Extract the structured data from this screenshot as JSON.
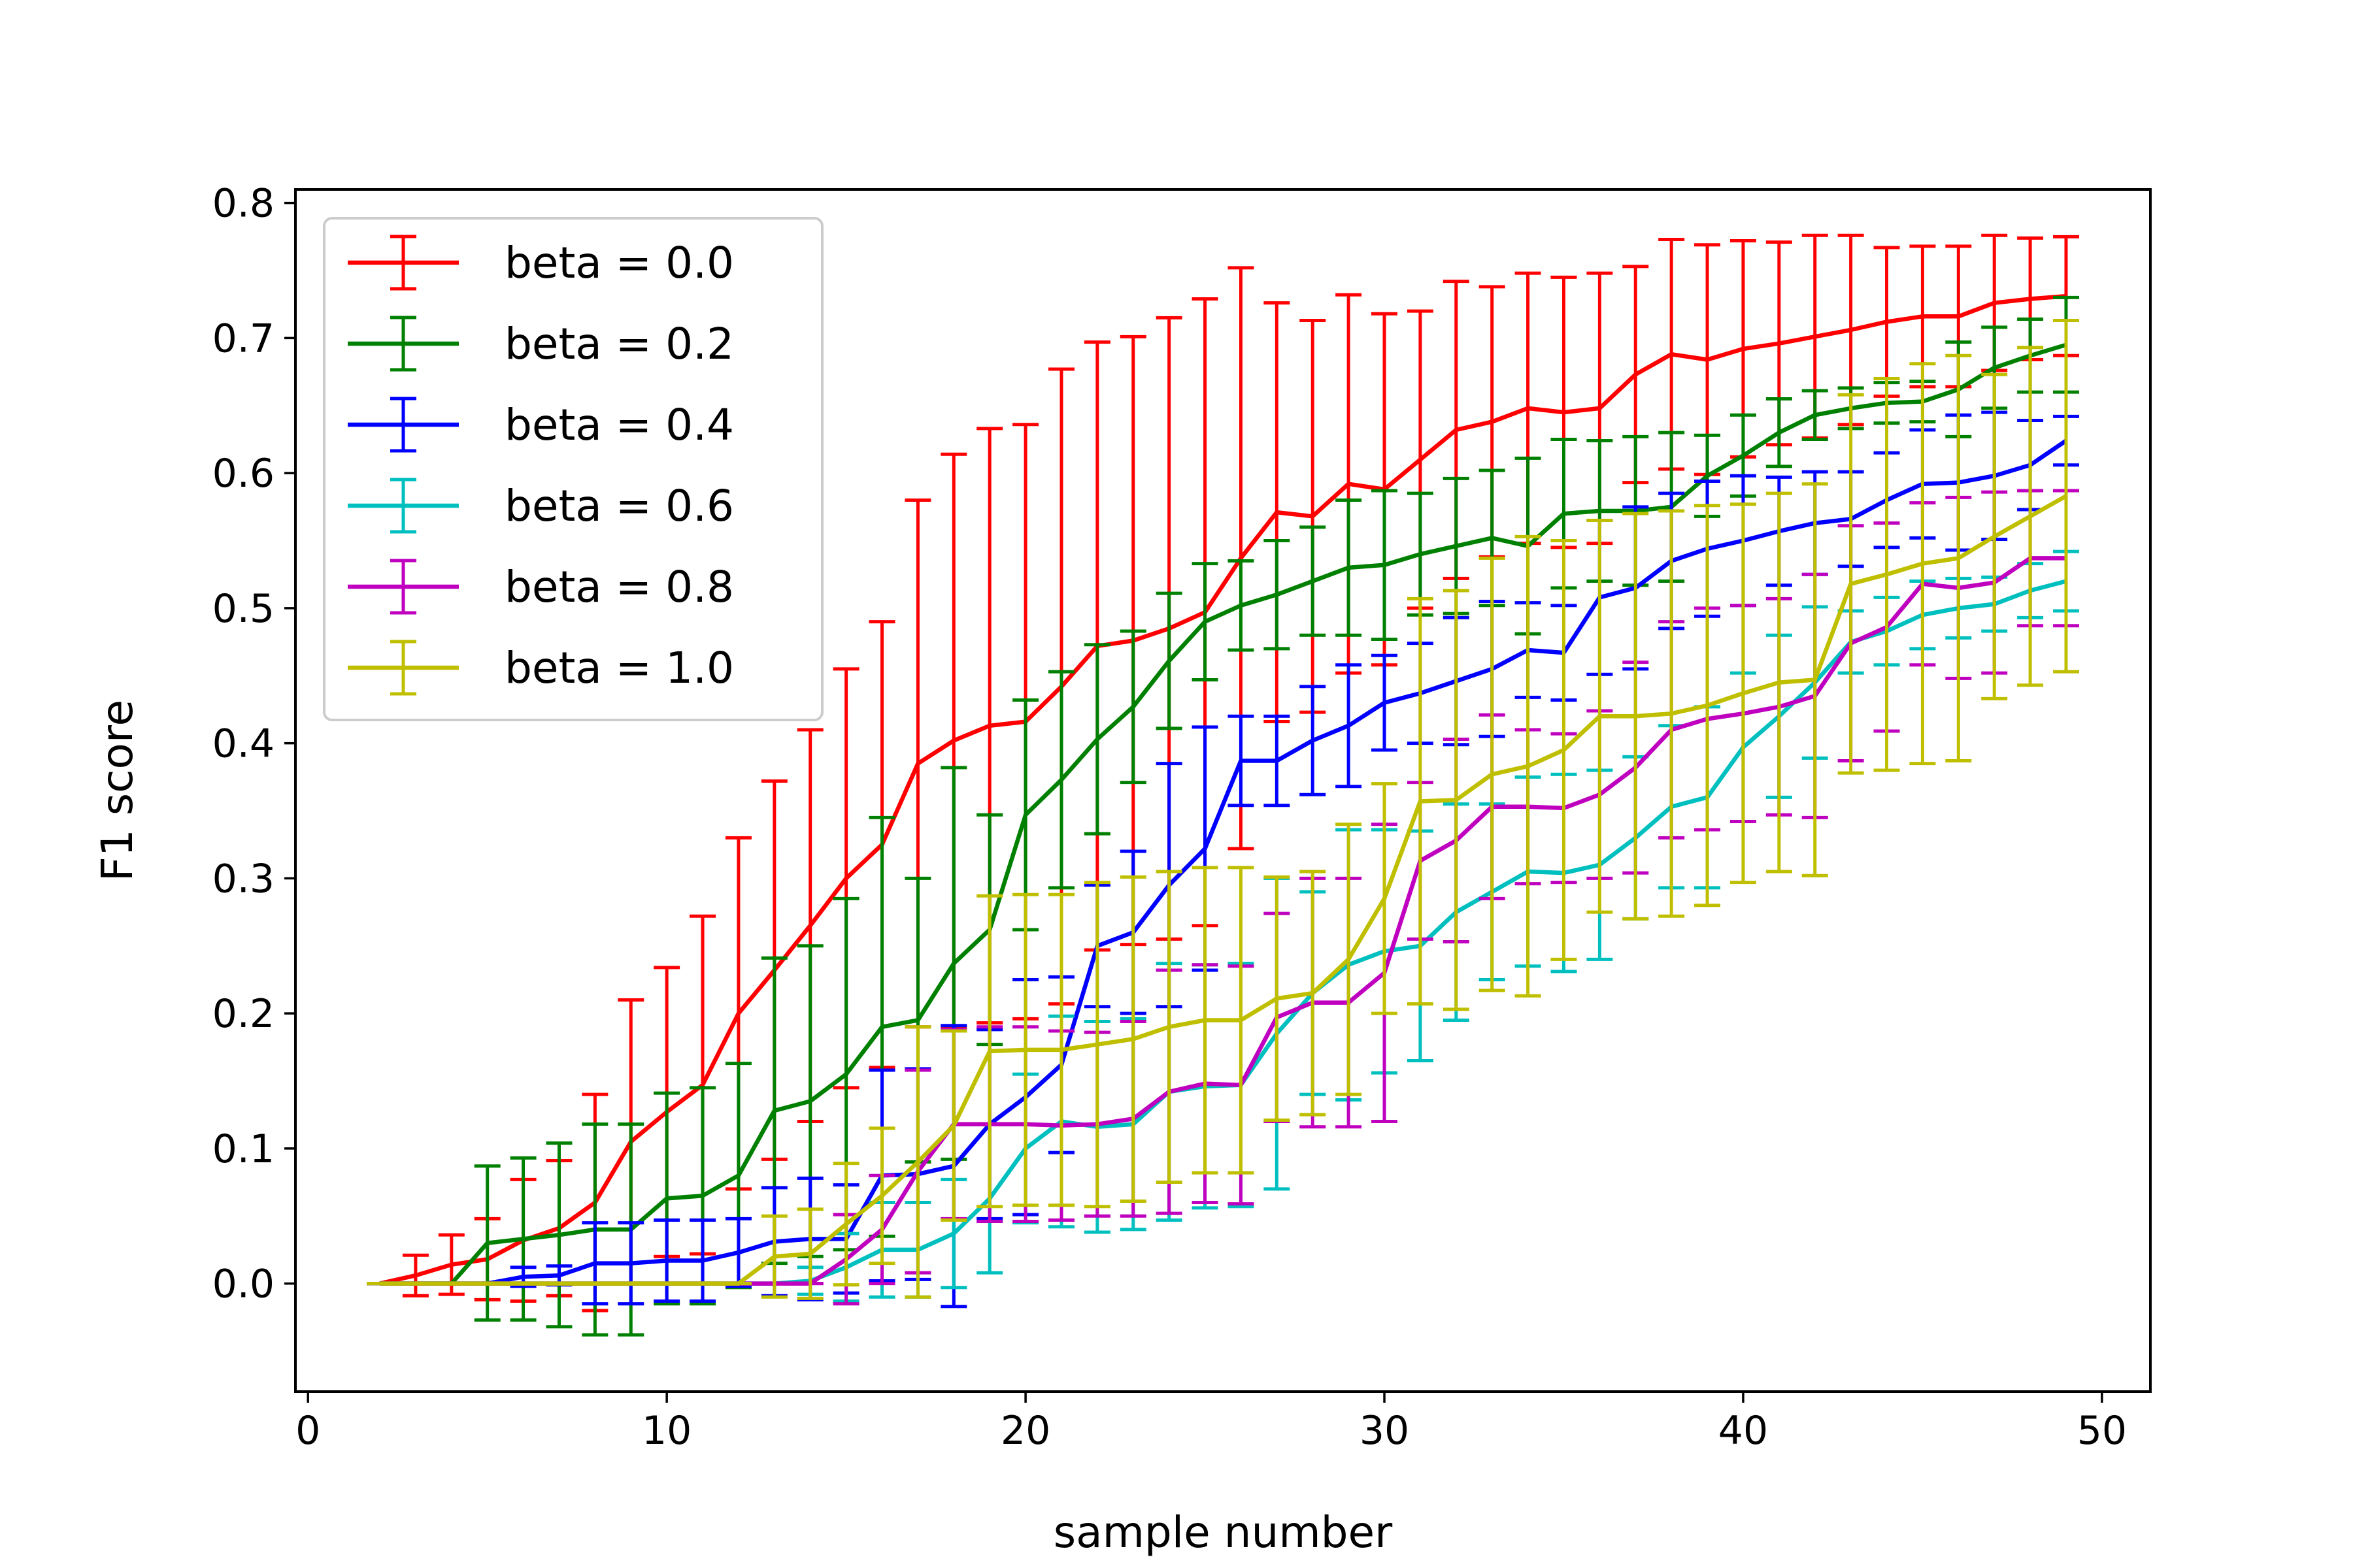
{
  "chart_data": {
    "type": "line",
    "title": "",
    "xlabel": "sample number",
    "ylabel": "F1 score",
    "xlim": [
      -0.35,
      51.35
    ],
    "ylim": [
      -0.08,
      0.81
    ],
    "xticks": [
      0,
      10,
      20,
      30,
      40,
      50
    ],
    "xtick_labels": [
      "0",
      "10",
      "20",
      "30",
      "40",
      "50"
    ],
    "yticks": [
      0.0,
      0.1,
      0.2,
      0.3,
      0.4,
      0.5,
      0.6,
      0.7,
      0.8
    ],
    "ytick_labels": [
      "0.0",
      "0.1",
      "0.2",
      "0.3",
      "0.4",
      "0.5",
      "0.6",
      "0.7",
      "0.8"
    ],
    "grid": false,
    "legend_position": "upper-left",
    "x": [
      2,
      3,
      4,
      5,
      6,
      7,
      8,
      9,
      10,
      11,
      12,
      13,
      14,
      15,
      16,
      17,
      18,
      19,
      20,
      21,
      22,
      23,
      24,
      25,
      26,
      27,
      28,
      29,
      30,
      31,
      32,
      33,
      34,
      35,
      36,
      37,
      38,
      39,
      40,
      41,
      42,
      43,
      44,
      45,
      46,
      47,
      48,
      49
    ],
    "series": [
      {
        "name": "beta = 0.0",
        "color": "#ff0000",
        "values": [
          0,
          0.006,
          0.014,
          0.018,
          0.032,
          0.041,
          0.06,
          0.105,
          0.127,
          0.147,
          0.2,
          0.232,
          0.265,
          0.3,
          0.325,
          0.385,
          0.402,
          0.413,
          0.416,
          0.442,
          0.472,
          0.476,
          0.485,
          0.497,
          0.537,
          0.571,
          0.568,
          0.592,
          0.588,
          0.61,
          0.632,
          0.638,
          0.648,
          0.645,
          0.648,
          0.673,
          0.688,
          0.684,
          0.692,
          0.696,
          0.701,
          0.706,
          0.712,
          0.716,
          0.716,
          0.726,
          0.729,
          0.731
        ],
        "errors": [
          0,
          0.015,
          0.022,
          0.03,
          0.045,
          0.05,
          0.08,
          0.105,
          0.107,
          0.125,
          0.13,
          0.14,
          0.145,
          0.155,
          0.165,
          0.195,
          0.212,
          0.22,
          0.22,
          0.235,
          0.225,
          0.225,
          0.23,
          0.232,
          0.215,
          0.155,
          0.145,
          0.14,
          0.13,
          0.11,
          0.11,
          0.1,
          0.1,
          0.1,
          0.1,
          0.08,
          0.085,
          0.085,
          0.08,
          0.075,
          0.075,
          0.07,
          0.055,
          0.052,
          0.052,
          0.05,
          0.045,
          0.044
        ]
      },
      {
        "name": "beta = 0.2",
        "color": "#008000",
        "values": [
          0,
          0,
          0,
          0.03,
          0.033,
          0.036,
          0.04,
          0.04,
          0.063,
          0.065,
          0.08,
          0.128,
          0.135,
          0.155,
          0.19,
          0.195,
          0.237,
          0.262,
          0.347,
          0.373,
          0.403,
          0.427,
          0.461,
          0.49,
          0.502,
          0.51,
          0.52,
          0.53,
          0.532,
          0.54,
          0.546,
          0.552,
          0.546,
          0.57,
          0.572,
          0.572,
          0.575,
          0.598,
          0.613,
          0.63,
          0.643,
          0.648,
          0.652,
          0.653,
          0.662,
          0.678,
          0.687,
          0.695
        ],
        "errors": [
          0,
          0,
          0,
          0.057,
          0.06,
          0.068,
          0.078,
          0.078,
          0.078,
          0.08,
          0.083,
          0.113,
          0.115,
          0.13,
          0.155,
          0.105,
          0.145,
          0.085,
          0.085,
          0.08,
          0.07,
          0.056,
          0.05,
          0.043,
          0.033,
          0.04,
          0.04,
          0.05,
          0.055,
          0.045,
          0.05,
          0.05,
          0.065,
          0.055,
          0.052,
          0.055,
          0.055,
          0.03,
          0.03,
          0.025,
          0.018,
          0.015,
          0.015,
          0.015,
          0.035,
          0.03,
          0.027,
          0.035
        ]
      },
      {
        "name": "beta = 0.4",
        "color": "#0000ff",
        "values": [
          0,
          0,
          0,
          0,
          0.005,
          0.006,
          0.015,
          0.015,
          0.017,
          0.017,
          0.023,
          0.031,
          0.033,
          0.033,
          0.08,
          0.081,
          0.087,
          0.118,
          0.138,
          0.162,
          0.25,
          0.26,
          0.295,
          0.322,
          0.387,
          0.387,
          0.402,
          0.413,
          0.43,
          0.437,
          0.446,
          0.455,
          0.469,
          0.467,
          0.508,
          0.515,
          0.535,
          0.544,
          0.55,
          0.557,
          0.563,
          0.566,
          0.58,
          0.592,
          0.593,
          0.598,
          0.606,
          0.624
        ],
        "errors": [
          0,
          0,
          0,
          0,
          0.007,
          0.007,
          0.03,
          0.03,
          0.03,
          0.03,
          0.025,
          0.04,
          0.045,
          0.04,
          0.078,
          0.078,
          0.104,
          0.07,
          0.087,
          0.065,
          0.045,
          0.06,
          0.09,
          0.09,
          0.033,
          0.033,
          0.04,
          0.045,
          0.035,
          0.037,
          0.047,
          0.05,
          0.035,
          0.035,
          0.057,
          0.06,
          0.05,
          0.05,
          0.048,
          0.04,
          0.038,
          0.035,
          0.035,
          0.04,
          0.05,
          0.047,
          0.033,
          0.018
        ]
      },
      {
        "name": "beta = 0.6",
        "color": "#00bfbf",
        "values": [
          0,
          0,
          0,
          0,
          0,
          0,
          0,
          0,
          0,
          0,
          0,
          0,
          0.002,
          0.012,
          0.025,
          0.025,
          0.037,
          0.063,
          0.1,
          0.12,
          0.116,
          0.118,
          0.142,
          0.146,
          0.147,
          0.185,
          0.215,
          0.236,
          0.246,
          0.25,
          0.275,
          0.29,
          0.305,
          0.304,
          0.31,
          0.33,
          0.353,
          0.36,
          0.397,
          0.42,
          0.445,
          0.475,
          0.483,
          0.495,
          0.5,
          0.503,
          0.513,
          0.52
        ],
        "errors": [
          0,
          0,
          0,
          0,
          0,
          0,
          0,
          0,
          0,
          0,
          0,
          0,
          0.01,
          0.025,
          0.035,
          0.035,
          0.04,
          0.055,
          0.055,
          0.078,
          0.078,
          0.078,
          0.095,
          0.09,
          0.09,
          0.115,
          0.075,
          0.1,
          0.09,
          0.085,
          0.08,
          0.065,
          0.07,
          0.073,
          0.07,
          0.06,
          0.06,
          0.067,
          0.055,
          0.06,
          0.056,
          0.023,
          0.025,
          0.025,
          0.022,
          0.02,
          0.02,
          0.022
        ]
      },
      {
        "name": "beta = 0.8",
        "color": "#bf00bf",
        "values": [
          0,
          0,
          0,
          0,
          0,
          0,
          0,
          0,
          0,
          0,
          0,
          0,
          0,
          0.018,
          0.04,
          0.083,
          0.118,
          0.118,
          0.118,
          0.117,
          0.118,
          0.122,
          0.142,
          0.148,
          0.147,
          0.197,
          0.208,
          0.208,
          0.23,
          0.313,
          0.328,
          0.353,
          0.353,
          0.352,
          0.362,
          0.382,
          0.41,
          0.418,
          0.422,
          0.427,
          0.435,
          0.474,
          0.486,
          0.518,
          0.515,
          0.519,
          0.537,
          0.537
        ],
        "errors": [
          0,
          0,
          0,
          0,
          0,
          0,
          0,
          0,
          0,
          0,
          0,
          0,
          0,
          0.033,
          0.04,
          0.075,
          0.07,
          0.072,
          0.072,
          0.07,
          0.068,
          0.072,
          0.09,
          0.088,
          0.088,
          0.077,
          0.092,
          0.092,
          0.11,
          0.058,
          0.075,
          0.068,
          0.057,
          0.055,
          0.062,
          0.078,
          0.08,
          0.082,
          0.08,
          0.08,
          0.09,
          0.087,
          0.077,
          0.06,
          0.067,
          0.067,
          0.05,
          0.05
        ]
      },
      {
        "name": "beta = 1.0",
        "color": "#bfbf00",
        "values": [
          0,
          0,
          0,
          0,
          0,
          0,
          0,
          0,
          0,
          0,
          0,
          0.02,
          0.022,
          0.044,
          0.065,
          0.09,
          0.117,
          0.172,
          0.173,
          0.173,
          0.177,
          0.181,
          0.19,
          0.195,
          0.195,
          0.211,
          0.215,
          0.24,
          0.285,
          0.357,
          0.358,
          0.377,
          0.383,
          0.395,
          0.42,
          0.42,
          0.422,
          0.428,
          0.437,
          0.445,
          0.447,
          0.518,
          0.525,
          0.533,
          0.537,
          0.553,
          0.568,
          0.583
        ],
        "errors": [
          0,
          0,
          0,
          0,
          0,
          0,
          0,
          0,
          0,
          0,
          0,
          0.03,
          0.033,
          0.045,
          0.05,
          0.1,
          0.07,
          0.115,
          0.115,
          0.115,
          0.12,
          0.12,
          0.115,
          0.113,
          0.113,
          0.09,
          0.09,
          0.1,
          0.085,
          0.15,
          0.155,
          0.16,
          0.17,
          0.155,
          0.145,
          0.15,
          0.15,
          0.148,
          0.14,
          0.14,
          0.145,
          0.14,
          0.145,
          0.148,
          0.15,
          0.12,
          0.125,
          0.13
        ]
      }
    ]
  }
}
